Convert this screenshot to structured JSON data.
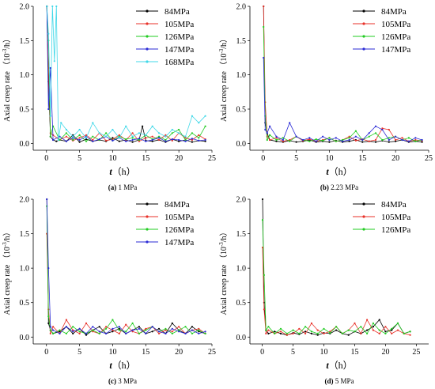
{
  "chart_data": [
    {
      "type": "line",
      "caption_label": "(a)",
      "caption_rest": " 1 MPa",
      "xlabel_italic": "t",
      "xlabel_unit": "（h）",
      "ylabel": "Axial creep rate （10",
      "ylabel_sup": "-3",
      "ylabel_tail": "/h）",
      "xlim": [
        -2,
        25
      ],
      "ylim": [
        -0.1,
        2.0
      ],
      "xticks": [
        "0",
        "5",
        "10",
        "15",
        "20",
        "25"
      ],
      "yticks": [
        "0.0",
        "0.5",
        "1.0",
        "1.5",
        "2.0"
      ],
      "legend_position": "top-right",
      "series": [
        {
          "name": "84MPa",
          "color": "#000000",
          "x": [
            0.05,
            0.3,
            0.6,
            1,
            1.5,
            2,
            3,
            4,
            5,
            6,
            7,
            8,
            9,
            10,
            11,
            12,
            13,
            14,
            14.5,
            15,
            16,
            17,
            18,
            19,
            20,
            21,
            22,
            23,
            24
          ],
          "y": [
            2.0,
            0.9,
            0.1,
            0.05,
            0.03,
            0.05,
            0.03,
            0.12,
            0.02,
            0.06,
            0.03,
            0.05,
            0.03,
            0.08,
            0.03,
            0.05,
            0.02,
            0.05,
            0.25,
            0.04,
            0.03,
            0.05,
            0.02,
            0.06,
            0.03,
            0.05,
            0.02,
            0.04,
            0.03
          ]
        },
        {
          "name": "105MPa",
          "color": "#e8322a",
          "x": [
            0.05,
            0.3,
            0.6,
            1,
            2,
            3,
            4,
            5,
            6,
            7,
            8,
            9,
            10,
            11,
            12,
            13,
            14,
            15,
            16,
            17,
            18,
            19,
            20,
            21,
            22,
            23,
            24
          ],
          "y": [
            2.0,
            1.1,
            0.15,
            0.12,
            0.05,
            0.1,
            0.04,
            0.08,
            0.12,
            0.05,
            0.15,
            0.04,
            0.06,
            0.12,
            0.05,
            0.15,
            0.03,
            0.08,
            0.1,
            0.05,
            0.12,
            0.04,
            0.15,
            0.08,
            0.05,
            0.12,
            0.06
          ]
        },
        {
          "name": "126MPa",
          "color": "#22cc22",
          "x": [
            0.05,
            0.3,
            0.6,
            1,
            2,
            3,
            4,
            5,
            6,
            7,
            8,
            9,
            10,
            11,
            12,
            13,
            14,
            15,
            16,
            17,
            18,
            19,
            20,
            21,
            22,
            23,
            24
          ],
          "y": [
            2.0,
            1.5,
            0.1,
            0.25,
            0.05,
            0.15,
            0.05,
            0.12,
            0.03,
            0.1,
            0.05,
            0.15,
            0.04,
            0.1,
            0.06,
            0.08,
            0.05,
            0.12,
            0.06,
            0.1,
            0.05,
            0.15,
            0.2,
            0.05,
            0.15,
            0.08,
            0.25
          ]
        },
        {
          "name": "147MPa",
          "color": "#2b2bd6",
          "x": [
            0.05,
            0.3,
            0.6,
            1,
            2,
            3,
            4,
            5,
            6,
            7,
            8,
            9,
            10,
            11,
            12,
            13,
            14,
            15,
            16,
            17,
            18,
            19,
            20,
            21,
            22,
            23,
            24
          ],
          "y": [
            2.0,
            0.5,
            1.1,
            0.05,
            0.1,
            0.03,
            0.08,
            0.05,
            0.1,
            0.03,
            0.06,
            0.1,
            0.04,
            0.08,
            0.03,
            0.05,
            0.07,
            0.03,
            0.05,
            0.08,
            0.03,
            0.06,
            0.05,
            0.03,
            0.07,
            0.04,
            0.05
          ]
        },
        {
          "name": "168MPa",
          "color": "#40d8e8",
          "x": [
            0.05,
            0.3,
            0.6,
            0.9,
            1.2,
            1.5,
            1.8,
            2.2,
            3,
            4,
            5,
            6,
            7,
            8,
            9,
            10,
            11,
            12,
            13,
            14,
            15,
            16,
            17,
            18,
            19,
            20,
            21,
            22,
            23,
            24
          ],
          "y": [
            2.0,
            1.6,
            0.4,
            2.0,
            1.2,
            2.0,
            0.05,
            0.3,
            0.2,
            0.1,
            0.2,
            0.08,
            0.3,
            0.15,
            0.1,
            0.2,
            0.08,
            0.25,
            0.1,
            0.15,
            0.12,
            0.25,
            0.15,
            0.1,
            0.2,
            0.15,
            0.1,
            0.4,
            0.3,
            0.4
          ]
        }
      ]
    },
    {
      "type": "line",
      "caption_label": "(b)",
      "caption_rest": " 2.23 MPa",
      "xlabel_italic": "t",
      "xlabel_unit": "（h）",
      "ylabel": "Axial creep rate （10",
      "ylabel_sup": "-3",
      "ylabel_tail": "/h）",
      "xlim": [
        -2,
        25
      ],
      "ylim": [
        -0.1,
        2.0
      ],
      "xticks": [
        "0",
        "5",
        "10",
        "15",
        "20",
        "25"
      ],
      "yticks": [
        "0.0",
        "0.5",
        "1.0",
        "1.5",
        "2.0"
      ],
      "legend_position": "top-right",
      "series": [
        {
          "name": "84MPa",
          "color": "#000000",
          "x": [
            0.05,
            0.3,
            0.6,
            1,
            2,
            3,
            4,
            5,
            6,
            7,
            8,
            9,
            10,
            11,
            12,
            13,
            14,
            15,
            16,
            17,
            18,
            19,
            20,
            21,
            22,
            23,
            24
          ],
          "y": [
            2.0,
            0.3,
            0.15,
            0.05,
            0.03,
            0.02,
            0.04,
            0.02,
            0.03,
            0.05,
            0.02,
            0.03,
            0.02,
            0.04,
            0.02,
            0.03,
            0.05,
            0.02,
            0.03,
            0.02,
            0.04,
            0.02,
            0.03,
            0.05,
            0.02,
            0.03,
            0.02
          ]
        },
        {
          "name": "105MPa",
          "color": "#e8322a",
          "x": [
            0.05,
            0.3,
            0.6,
            1,
            2,
            3,
            4,
            5,
            6,
            7,
            8,
            9,
            10,
            11,
            12,
            13,
            14,
            15,
            16,
            17,
            18,
            19,
            20,
            21,
            22,
            23,
            24
          ],
          "y": [
            2.0,
            0.6,
            0.1,
            0.05,
            0.08,
            0.03,
            0.05,
            0.1,
            0.04,
            0.06,
            0.03,
            0.05,
            0.08,
            0.03,
            0.05,
            0.1,
            0.04,
            0.06,
            0.03,
            0.05,
            0.22,
            0.2,
            0.05,
            0.08,
            0.03,
            0.05,
            0.04
          ]
        },
        {
          "name": "126MPa",
          "color": "#22cc22",
          "x": [
            0.05,
            0.3,
            0.6,
            1,
            2,
            3,
            4,
            5,
            6,
            7,
            8,
            9,
            10,
            11,
            12,
            13,
            14,
            15,
            16,
            17,
            18,
            19,
            20,
            21,
            22,
            23,
            24
          ],
          "y": [
            1.7,
            0.4,
            0.05,
            0.12,
            0.05,
            0.08,
            0.03,
            0.1,
            0.05,
            0.03,
            0.06,
            0.04,
            0.08,
            0.03,
            0.05,
            0.08,
            0.18,
            0.05,
            0.1,
            0.15,
            0.05,
            0.08,
            0.1,
            0.05,
            0.08,
            0.03,
            0.05
          ]
        },
        {
          "name": "147MPa",
          "color": "#2b2bd6",
          "x": [
            0.05,
            0.3,
            0.6,
            1,
            2,
            3,
            4,
            5,
            6,
            7,
            8,
            9,
            10,
            11,
            12,
            13,
            14,
            15,
            16,
            17,
            18,
            19,
            20,
            21,
            22,
            23,
            24
          ],
          "y": [
            1.25,
            0.2,
            0.15,
            0.25,
            0.1,
            0.05,
            0.3,
            0.1,
            0.05,
            0.08,
            0.03,
            0.1,
            0.05,
            0.08,
            0.03,
            0.05,
            0.1,
            0.05,
            0.15,
            0.25,
            0.2,
            0.05,
            0.1,
            0.05,
            0.03,
            0.08,
            0.05
          ]
        }
      ]
    },
    {
      "type": "line",
      "caption_label": "(c)",
      "caption_rest": " 3 MPa",
      "xlabel_italic": "t",
      "xlabel_unit": "（h）",
      "ylabel": "Axial creep rate （10",
      "ylabel_sup": "-3",
      "ylabel_tail": "/h）",
      "xlim": [
        -2,
        25
      ],
      "ylim": [
        -0.1,
        2.0
      ],
      "xticks": [
        "0",
        "5",
        "10",
        "15",
        "20",
        "25"
      ],
      "yticks": [
        "0.0",
        "0.5",
        "1.0",
        "1.5",
        "2.0"
      ],
      "legend_position": "top-right",
      "series": [
        {
          "name": "84MPa",
          "color": "#000000",
          "x": [
            0.05,
            0.3,
            0.6,
            1,
            2,
            3,
            4,
            5,
            6,
            7,
            8,
            9,
            10,
            11,
            12,
            13,
            14,
            15,
            16,
            17,
            18,
            19,
            20,
            21,
            22,
            23,
            24
          ],
          "y": [
            2.0,
            0.2,
            0.1,
            0.05,
            0.08,
            0.15,
            0.05,
            0.12,
            0.03,
            0.1,
            0.15,
            0.05,
            0.08,
            0.12,
            0.05,
            0.1,
            0.15,
            0.05,
            0.08,
            0.12,
            0.05,
            0.2,
            0.1,
            0.05,
            0.15,
            0.08,
            0.05
          ]
        },
        {
          "name": "105MPa",
          "color": "#e8322a",
          "x": [
            0.05,
            0.3,
            0.6,
            1,
            2,
            3,
            4,
            5,
            6,
            7,
            8,
            9,
            10,
            11,
            12,
            13,
            14,
            15,
            16,
            17,
            18,
            19,
            20,
            21,
            22,
            23,
            24
          ],
          "y": [
            1.5,
            0.4,
            0.05,
            0.15,
            0.05,
            0.25,
            0.1,
            0.05,
            0.2,
            0.08,
            0.05,
            0.15,
            0.1,
            0.05,
            0.18,
            0.08,
            0.05,
            0.12,
            0.15,
            0.05,
            0.1,
            0.08,
            0.15,
            0.05,
            0.1,
            0.12,
            0.05
          ]
        },
        {
          "name": "126MPa",
          "color": "#22cc22",
          "x": [
            0.05,
            0.3,
            0.6,
            1,
            2,
            3,
            4,
            5,
            6,
            7,
            8,
            9,
            10,
            11,
            12,
            13,
            14,
            15,
            16,
            17,
            18,
            19,
            20,
            21,
            22,
            23,
            24
          ],
          "y": [
            1.9,
            0.3,
            0.1,
            0.05,
            0.1,
            0.05,
            0.15,
            0.08,
            0.05,
            0.1,
            0.05,
            0.12,
            0.25,
            0.1,
            0.08,
            0.2,
            0.05,
            0.1,
            0.15,
            0.08,
            0.12,
            0.05,
            0.1,
            0.15,
            0.05,
            0.1,
            0.05
          ]
        },
        {
          "name": "147MPa",
          "color": "#2b2bd6",
          "x": [
            0.05,
            0.3,
            0.6,
            1,
            2,
            3,
            4,
            5,
            6,
            7,
            8,
            9,
            10,
            11,
            12,
            13,
            14,
            15,
            16,
            17,
            18,
            19,
            20,
            21,
            22,
            23,
            24
          ],
          "y": [
            2.0,
            1.0,
            0.15,
            0.1,
            0.05,
            0.15,
            0.08,
            0.12,
            0.05,
            0.15,
            0.08,
            0.05,
            0.12,
            0.15,
            0.05,
            0.1,
            0.12,
            0.05,
            0.15,
            0.08,
            0.05,
            0.12,
            0.08,
            0.05,
            0.1,
            0.05,
            0.08
          ]
        }
      ]
    },
    {
      "type": "line",
      "caption_label": "(d)",
      "caption_rest": " 5 MPa",
      "xlabel_italic": "t",
      "xlabel_unit": "（h）",
      "ylabel": "Axial creep rate （10",
      "ylabel_sup": "-3",
      "ylabel_tail": "/h）",
      "xlim": [
        -2,
        27
      ],
      "ylim": [
        -0.1,
        2.0
      ],
      "xticks": [
        "0",
        "5",
        "10",
        "15",
        "20",
        "25"
      ],
      "yticks": [
        "0.0",
        "0.5",
        "1.0",
        "1.5",
        "2.0"
      ],
      "legend_position": "top-right",
      "series": [
        {
          "name": "84MPa",
          "color": "#000000",
          "x": [
            0.05,
            0.3,
            0.6,
            1,
            2,
            3,
            4,
            5,
            6,
            7,
            8,
            9,
            10,
            11,
            12,
            13,
            14,
            15,
            16,
            17,
            18,
            19,
            20,
            21,
            22,
            23,
            24
          ],
          "y": [
            2.0,
            0.5,
            0.1,
            0.05,
            0.08,
            0.05,
            0.03,
            0.06,
            0.04,
            0.08,
            0.05,
            0.03,
            0.06,
            0.05,
            0.1,
            0.05,
            0.03,
            0.08,
            0.05,
            0.1,
            0.15,
            0.25,
            0.08,
            0.1,
            0.2,
            0.05,
            0.08
          ]
        },
        {
          "name": "105MPa",
          "color": "#e8322a",
          "x": [
            0.05,
            0.3,
            0.6,
            1,
            2,
            3,
            4,
            5,
            6,
            7,
            8,
            9,
            10,
            11,
            12,
            13,
            14,
            15,
            16,
            17,
            18,
            19,
            20,
            21,
            22,
            23,
            24
          ],
          "y": [
            1.3,
            0.4,
            0.05,
            0.1,
            0.05,
            0.08,
            0.03,
            0.05,
            0.12,
            0.05,
            0.2,
            0.1,
            0.05,
            0.08,
            0.15,
            0.05,
            0.1,
            0.2,
            0.05,
            0.25,
            0.1,
            0.05,
            0.15,
            0.05,
            0.1,
            0.05,
            0.03
          ]
        },
        {
          "name": "126MPa",
          "color": "#22cc22",
          "x": [
            0.05,
            0.3,
            0.6,
            1,
            2,
            3,
            4,
            5,
            6,
            7,
            8,
            9,
            10,
            11,
            12,
            13,
            14,
            15,
            16,
            17,
            18,
            19,
            20,
            21,
            22,
            23,
            24
          ],
          "y": [
            1.7,
            0.9,
            0.1,
            0.15,
            0.05,
            0.12,
            0.05,
            0.1,
            0.05,
            0.15,
            0.08,
            0.05,
            0.12,
            0.06,
            0.15,
            0.05,
            0.1,
            0.08,
            0.15,
            0.05,
            0.2,
            0.1,
            0.05,
            0.12,
            0.2,
            0.05,
            0.08
          ]
        }
      ]
    }
  ]
}
